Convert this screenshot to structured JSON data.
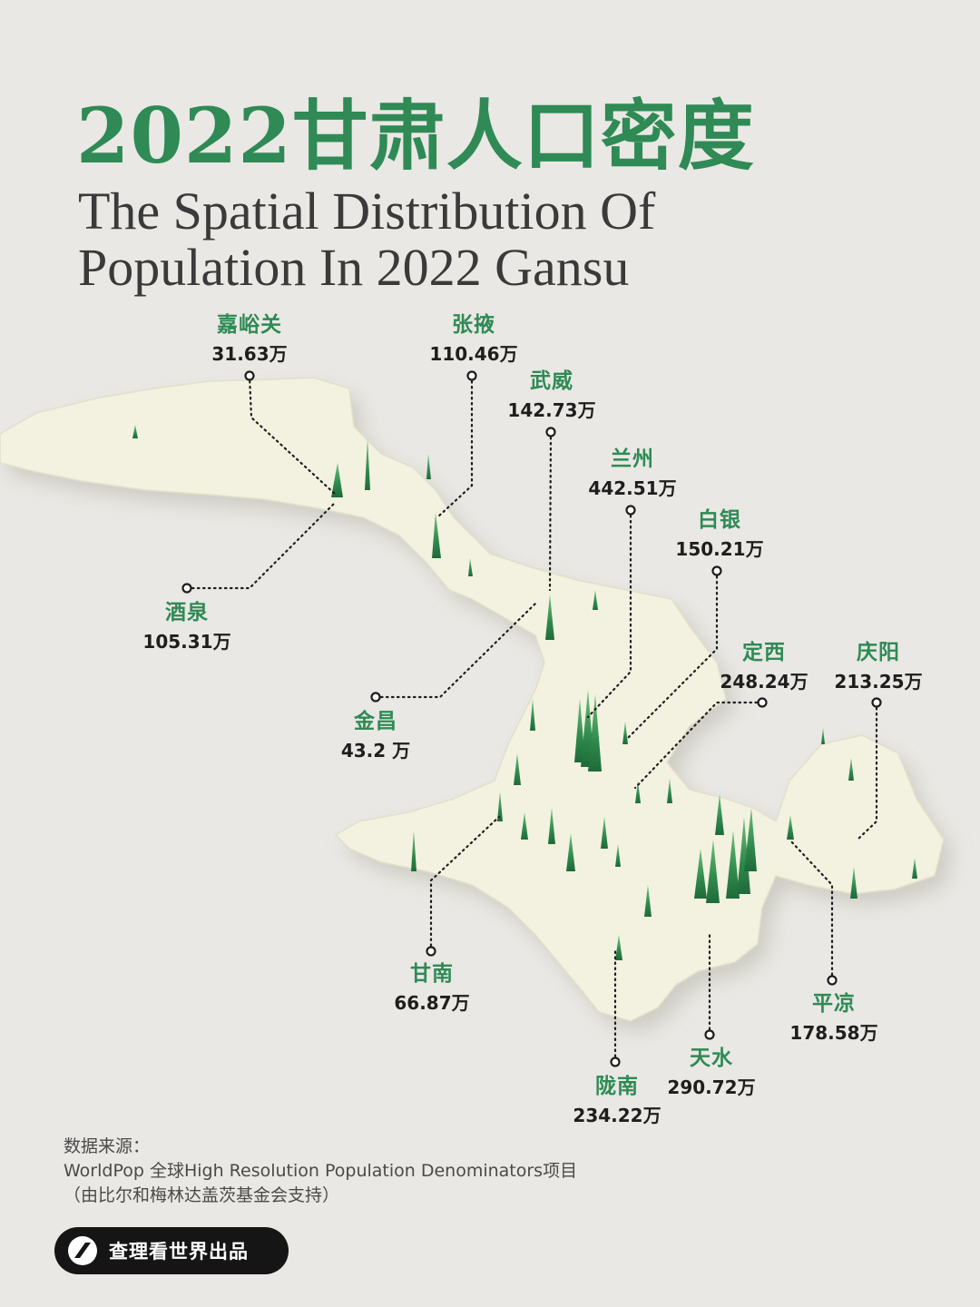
{
  "title": {
    "zh": "2022甘肃人口密度",
    "en_line1": "The Spatial Distribution Of",
    "en_line2": "Population In 2022 Gansu"
  },
  "colors": {
    "accent": "#2f8a55",
    "map_fill": "#f3f1e0",
    "spike": "#3fa060",
    "background": "#e9e8e4"
  },
  "cities": [
    {
      "name": "嘉峪关",
      "value": "31.63万"
    },
    {
      "name": "张掖",
      "value": "110.46万"
    },
    {
      "name": "武威",
      "value": "142.73万"
    },
    {
      "name": "兰州",
      "value": "442.51万"
    },
    {
      "name": "白银",
      "value": "150.21万"
    },
    {
      "name": "酒泉",
      "value": "105.31万"
    },
    {
      "name": "金昌",
      "value": "43.2 万"
    },
    {
      "name": "定西",
      "value": "248.24万"
    },
    {
      "name": "庆阳",
      "value": "213.25万"
    },
    {
      "name": "甘南",
      "value": "66.87万"
    },
    {
      "name": "平凉",
      "value": "178.58万"
    },
    {
      "name": "天水",
      "value": "290.72万"
    },
    {
      "name": "陇南",
      "value": "234.22万"
    }
  ],
  "source": {
    "line1": "数据来源：",
    "line2": "WorldPop 全球High Resolution Population Denominators项目",
    "line3": "（由比尔和梅林达盖茨基金会支持）"
  },
  "brand": {
    "text": "查理看世界出品",
    "icon": "brand-logo-icon"
  }
}
